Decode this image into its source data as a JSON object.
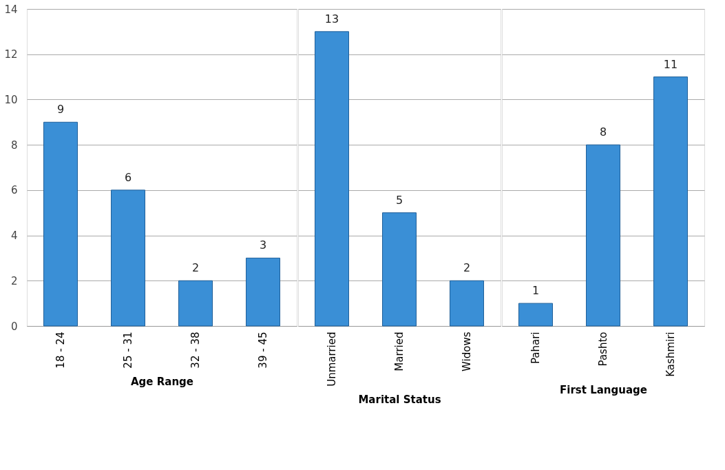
{
  "chart_data": [
    {
      "type": "bar",
      "xlabel": "Age Range",
      "categories": [
        "18 - 24",
        "25 - 31",
        "32 - 38",
        "39 - 45"
      ],
      "values": [
        9,
        6,
        2,
        3
      ],
      "color": "#3a8fd6",
      "ylim": [
        0,
        14
      ],
      "yticks": [
        0,
        2,
        4,
        6,
        8,
        10,
        12,
        14
      ],
      "grid": "y",
      "data_labels": true
    },
    {
      "type": "bar",
      "xlabel": "Marital Status",
      "categories": [
        "Unmarried",
        "Married",
        "Widows"
      ],
      "values": [
        13,
        5,
        2
      ],
      "color": "#3a8fd6",
      "ylim": [
        0,
        14
      ],
      "yticks": [
        0,
        2,
        4,
        6,
        8,
        10,
        12,
        14
      ],
      "grid": "y",
      "data_labels": true,
      "tick_labels": "x"
    },
    {
      "type": "bar",
      "xlabel": "First Language",
      "categories": [
        "Pahari",
        "Pashto",
        "Kashmiri"
      ],
      "values": [
        1,
        8,
        11
      ],
      "color": "#3a8fd6",
      "ylim": [
        0,
        14
      ],
      "yticks": [
        0,
        2,
        4,
        6,
        8,
        10,
        12,
        14
      ],
      "grid": "y",
      "data_labels": true,
      "tick_labels": "x"
    }
  ]
}
